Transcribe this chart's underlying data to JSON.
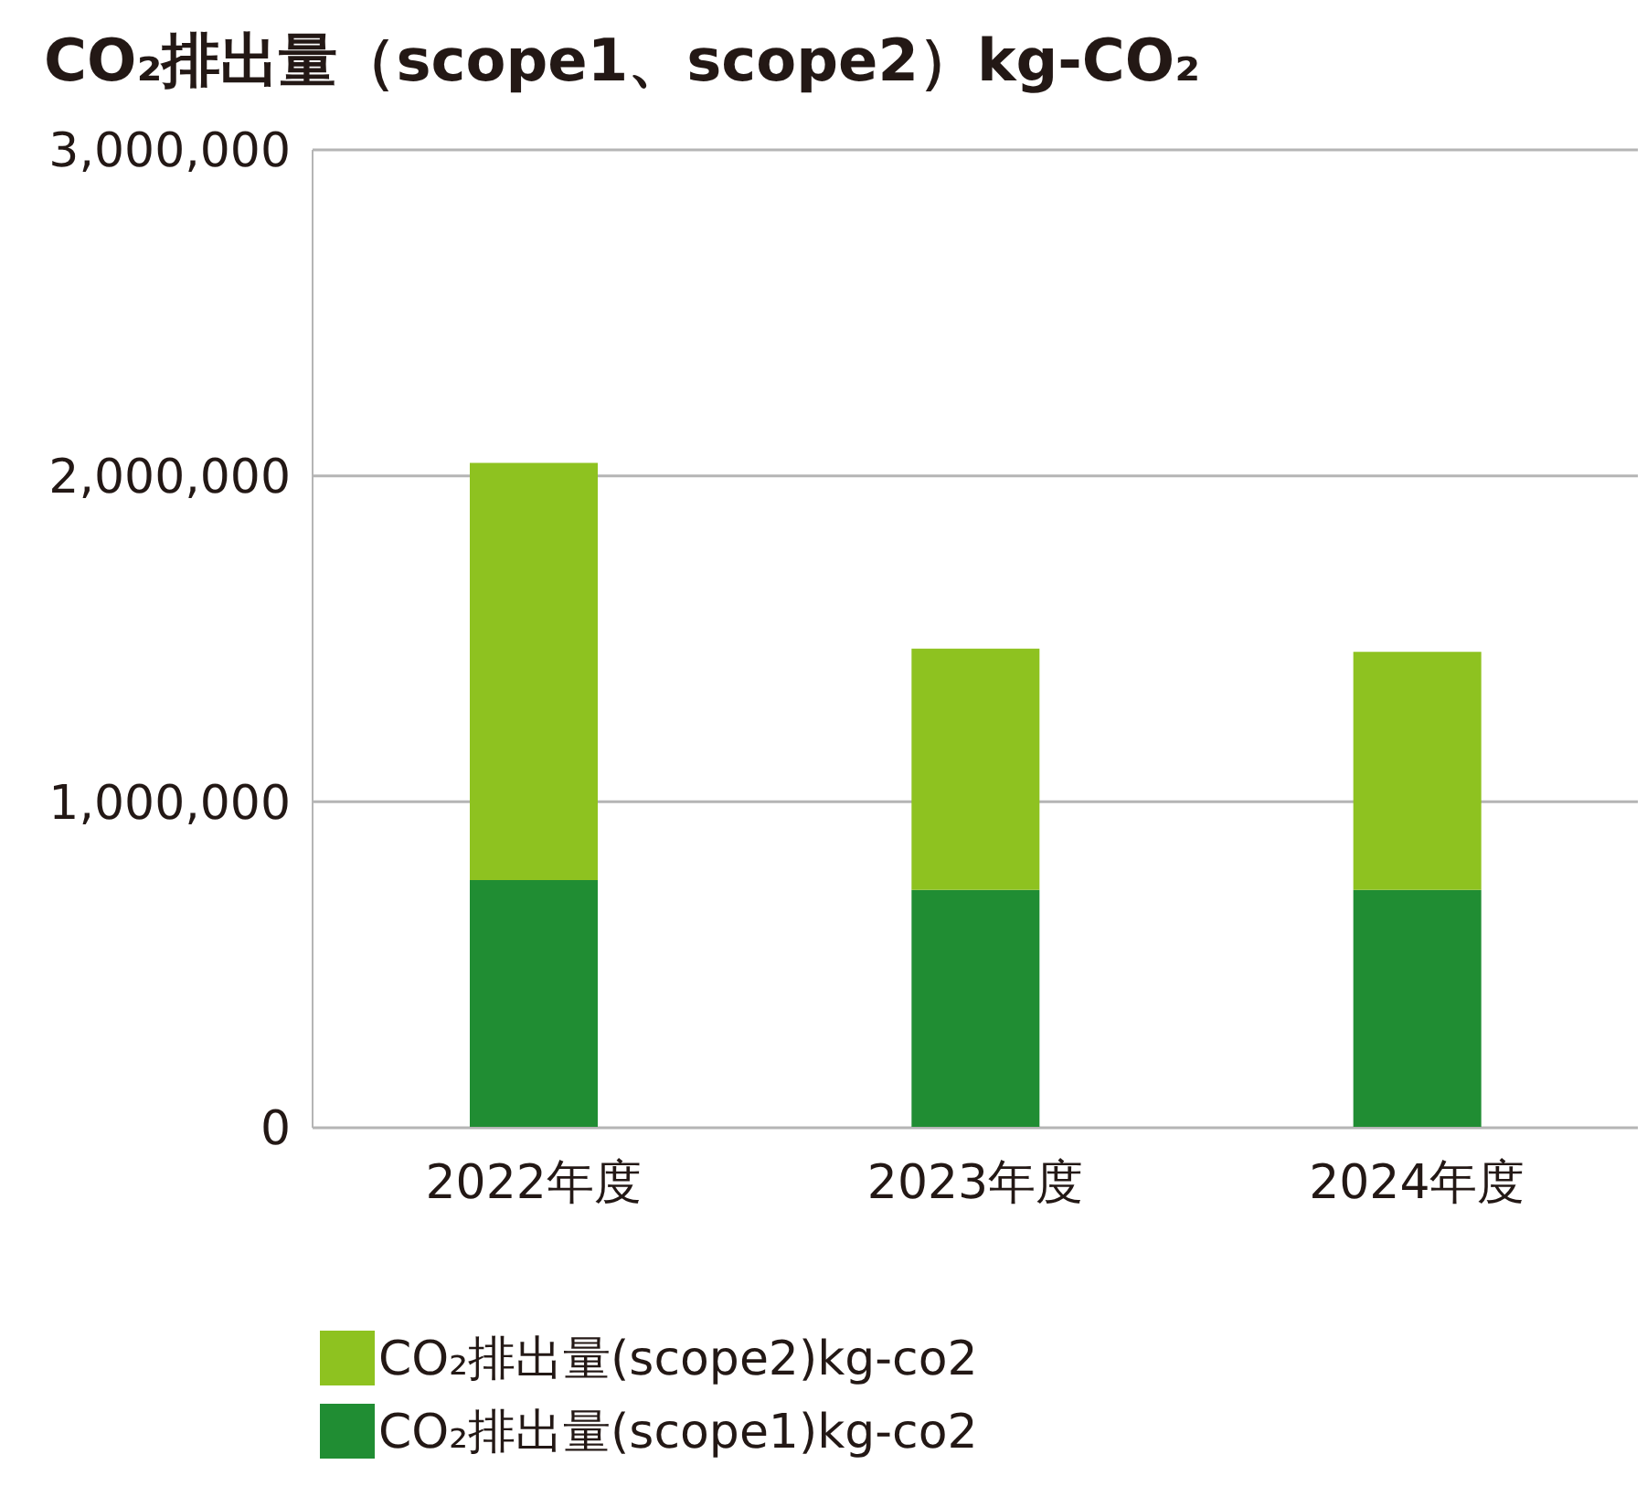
{
  "chart_data": {
    "type": "bar",
    "title": "CO₂排出量（scope1、scope2）kg-CO₂",
    "categories": [
      "2022年度",
      "2023年度",
      "2024年度"
    ],
    "stacked": true,
    "series": [
      {
        "name": "CO₂排出量(scope1)kg-co2",
        "color": "#208d33",
        "values": [
          760000,
          730000,
          730000
        ]
      },
      {
        "name": "CO₂排出量(scope2)kg-co2",
        "color": "#8ec220",
        "values": [
          1280000,
          740000,
          730000
        ]
      }
    ],
    "ylim": [
      0,
      3000000
    ],
    "yticks": [
      {
        "value": 0,
        "label": "0"
      },
      {
        "value": 1000000,
        "label": "1,000,000"
      },
      {
        "value": 2000000,
        "label": "2,000,000"
      },
      {
        "value": 3000000,
        "label": "3,000,000"
      }
    ],
    "grid": "y",
    "legend": "bottom"
  }
}
